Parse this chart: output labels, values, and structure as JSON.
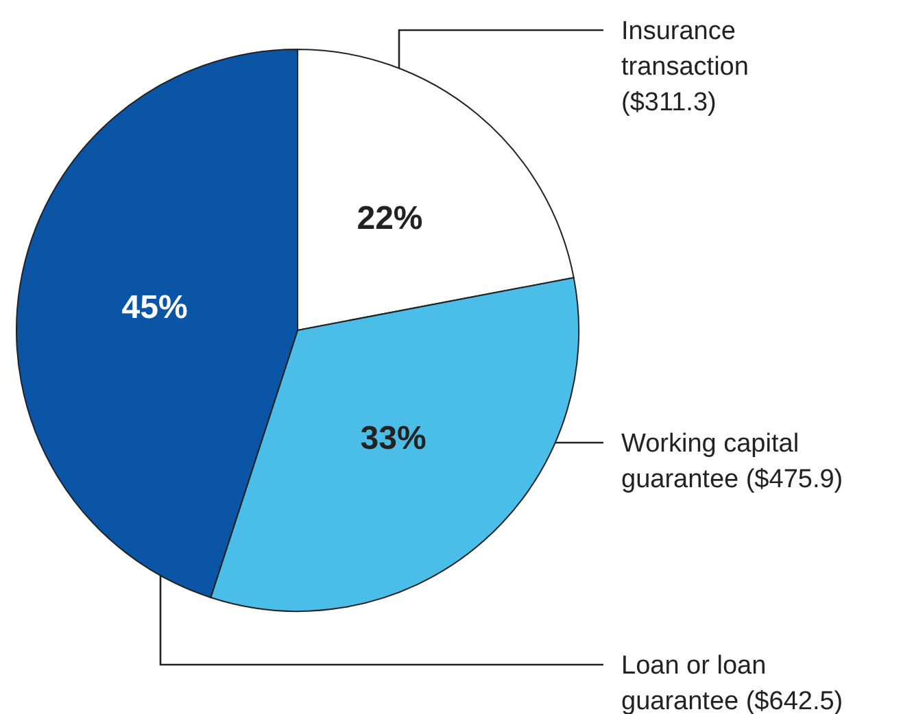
{
  "chart_data": {
    "type": "pie",
    "categories": [
      "Insurance transaction ($311.3)",
      "Working capital guarantee ($475.9)",
      "Loan or loan guarantee ($642.5)"
    ],
    "values": [
      22,
      33,
      45
    ],
    "colors": [
      "#ffffff",
      "#4bbde9",
      "#0a55a6"
    ],
    "value_labels": [
      "22%",
      "33%",
      "45%"
    ],
    "legend": false
  }
}
